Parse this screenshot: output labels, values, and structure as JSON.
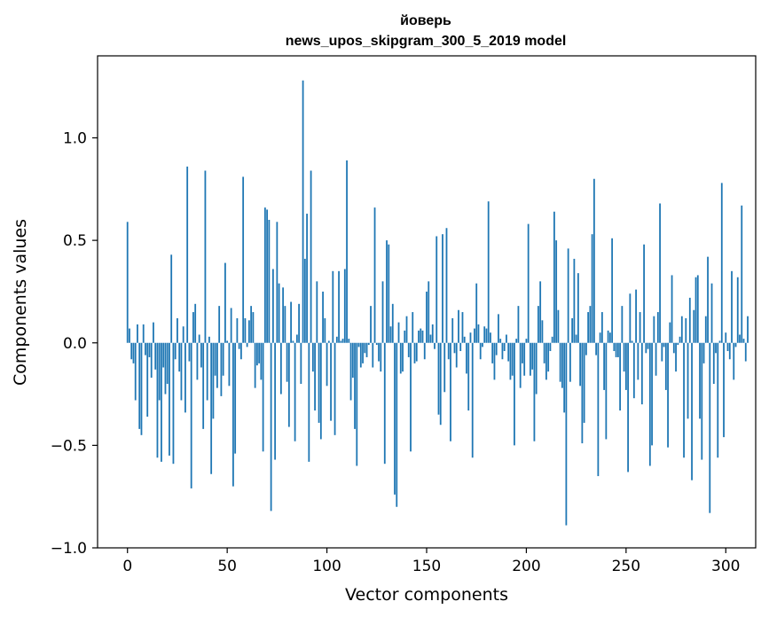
{
  "chart_data": {
    "type": "bar",
    "title": "йоверь",
    "subtitle": "news_upos_skipgram_300_5_2019 model",
    "xlabel": "Vector components",
    "ylabel": "Components values",
    "xlim": [
      -15,
      315
    ],
    "ylim": [
      -1.0,
      1.4
    ],
    "x_ticks": [
      0,
      50,
      100,
      150,
      200,
      250,
      300
    ],
    "x_tick_labels": [
      "0",
      "50",
      "100",
      "150",
      "200",
      "250",
      "300"
    ],
    "y_ticks": [
      -1.0,
      -0.5,
      0.0,
      0.5,
      1.0
    ],
    "y_tick_labels": [
      "−1.0",
      "−0.5",
      "0.0",
      "0.5",
      "1.0"
    ],
    "bar_color": "#1f77b4",
    "grid": false,
    "values": [
      0.59,
      0.07,
      -0.08,
      -0.1,
      -0.28,
      0.09,
      -0.42,
      -0.45,
      0.09,
      -0.06,
      -0.36,
      -0.07,
      -0.17,
      0.1,
      -0.13,
      -0.56,
      -0.28,
      -0.58,
      -0.12,
      -0.25,
      -0.2,
      -0.55,
      0.43,
      -0.59,
      -0.08,
      0.12,
      -0.14,
      -0.28,
      0.08,
      -0.34,
      0.86,
      -0.09,
      -0.71,
      0.15,
      0.19,
      -0.18,
      0.04,
      -0.12,
      -0.42,
      0.84,
      -0.28,
      0.03,
      -0.64,
      -0.37,
      -0.16,
      -0.22,
      0.18,
      -0.26,
      -0.16,
      0.39,
      0.01,
      -0.21,
      0.17,
      -0.7,
      -0.54,
      0.12,
      -0.03,
      -0.08,
      0.81,
      0.12,
      -0.02,
      0.11,
      0.18,
      0.15,
      -0.22,
      -0.11,
      -0.1,
      -0.18,
      -0.53,
      0.66,
      0.65,
      0.6,
      -0.82,
      0.36,
      -0.57,
      0.59,
      0.29,
      -0.25,
      0.27,
      0.18,
      -0.19,
      -0.41,
      0.2,
      0.01,
      -0.48,
      0.04,
      0.19,
      -0.2,
      1.28,
      0.41,
      0.63,
      -0.58,
      0.84,
      -0.14,
      -0.33,
      0.3,
      -0.39,
      -0.47,
      0.25,
      0.12,
      -0.21,
      0.01,
      -0.38,
      0.35,
      -0.45,
      0.03,
      0.35,
      0.01,
      0.02,
      0.36,
      0.89,
      0.02,
      -0.28,
      -0.17,
      -0.42,
      -0.6,
      -0.02,
      -0.12,
      -0.1,
      -0.05,
      -0.07,
      -0.01,
      0.18,
      -0.12,
      0.66,
      -0.01,
      -0.09,
      -0.14,
      0.3,
      -0.59,
      0.5,
      0.48,
      0.08,
      0.19,
      -0.74,
      -0.8,
      0.1,
      -0.15,
      -0.14,
      0.06,
      0.13,
      -0.07,
      -0.53,
      0.15,
      -0.1,
      -0.09,
      0.06,
      0.07,
      0.06,
      -0.08,
      0.25,
      0.3,
      0.04,
      0.09,
      -0.03,
      0.52,
      -0.35,
      -0.4,
      0.53,
      -0.24,
      0.56,
      -0.08,
      -0.48,
      0.12,
      -0.05,
      -0.12,
      0.16,
      -0.04,
      0.15,
      0.03,
      -0.15,
      -0.33,
      0.05,
      -0.56,
      0.07,
      0.29,
      0.09,
      -0.08,
      -0.02,
      0.08,
      0.07,
      0.69,
      0.05,
      -0.1,
      -0.18,
      -0.06,
      0.14,
      0.02,
      -0.08,
      -0.04,
      0.04,
      -0.09,
      -0.18,
      -0.16,
      -0.5,
      0.02,
      0.18,
      -0.22,
      -0.1,
      -0.16,
      0.02,
      0.58,
      -0.16,
      -0.13,
      -0.48,
      -0.25,
      0.18,
      0.3,
      0.11,
      -0.1,
      -0.18,
      -0.14,
      -0.04,
      0.03,
      0.64,
      0.5,
      0.16,
      -0.19,
      -0.22,
      -0.34,
      -0.89,
      0.46,
      -0.19,
      0.12,
      0.41,
      0.04,
      0.34,
      -0.21,
      -0.49,
      -0.39,
      -0.06,
      0.15,
      0.18,
      0.53,
      0.8,
      -0.06,
      -0.65,
      0.05,
      0.15,
      -0.23,
      -0.47,
      0.06,
      0.05,
      0.51,
      -0.04,
      -0.07,
      -0.07,
      -0.33,
      0.18,
      -0.14,
      -0.23,
      -0.63,
      0.24,
      0.01,
      -0.27,
      0.26,
      -0.18,
      0.15,
      -0.3,
      0.48,
      -0.05,
      -0.03,
      -0.6,
      -0.5,
      0.13,
      -0.16,
      0.15,
      0.68,
      -0.09,
      -0.02,
      -0.23,
      -0.51,
      0.1,
      0.33,
      -0.05,
      -0.14,
      -0.01,
      0.03,
      0.13,
      -0.56,
      0.12,
      -0.37,
      0.22,
      -0.67,
      0.16,
      0.32,
      0.33,
      -0.37,
      -0.57,
      -0.1,
      0.13,
      0.42,
      -0.83,
      0.29,
      -0.2,
      -0.05,
      -0.56,
      0.01,
      0.78,
      -0.46,
      0.05,
      -0.04,
      -0.08,
      0.35,
      -0.18,
      -0.02,
      0.32,
      0.04,
      0.67,
      0.02,
      -0.09,
      0.13
    ]
  }
}
